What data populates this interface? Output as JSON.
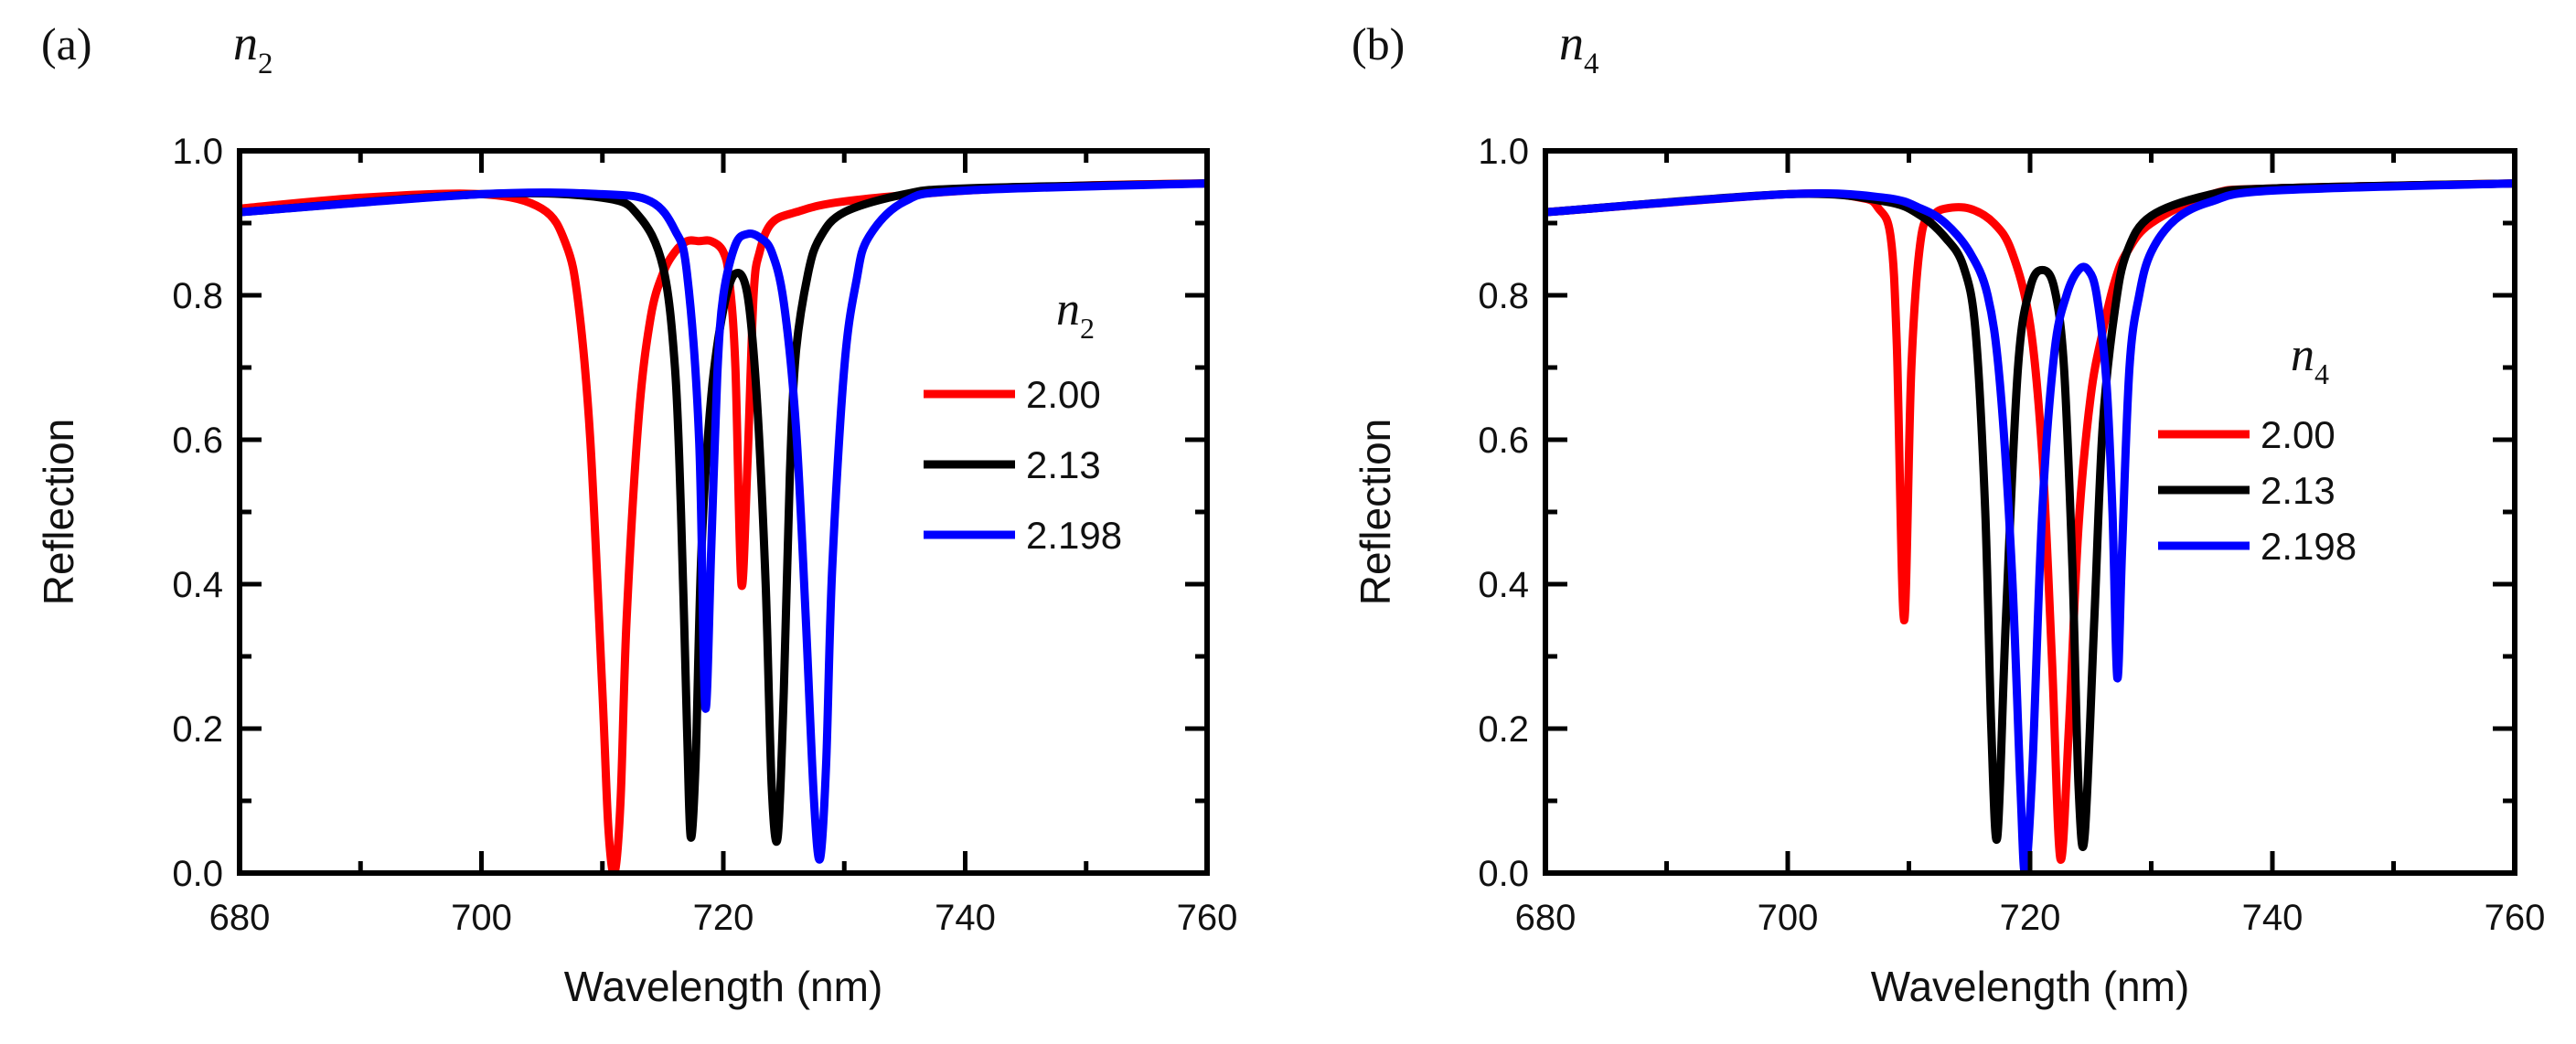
{
  "chart_data": [
    {
      "panel_label": "(a)",
      "param_symbol": "n",
      "param_subscript": "2",
      "type": "line",
      "xlabel": "Wavelength (nm)",
      "ylabel": "Reflection",
      "xlim": [
        680,
        760
      ],
      "ylim": [
        0,
        1.0
      ],
      "xticks": [
        680,
        700,
        720,
        740,
        760
      ],
      "yticks": [
        0,
        0.2,
        0.4,
        0.6,
        0.8,
        1.0
      ],
      "xtick_labels": [
        "680",
        "700",
        "720",
        "740",
        "760"
      ],
      "ytick_labels": [
        "0.0",
        "0.2",
        "0.4",
        "0.6",
        "0.8",
        "1.0"
      ],
      "legend": {
        "title_symbol": "n",
        "title_subscript": "2",
        "placement": "right"
      },
      "series": [
        {
          "name": "2.00",
          "color": "#ff0000",
          "x": [
            680,
            690,
            700,
            705,
            707,
            708,
            709,
            710,
            710.5,
            711,
            711.5,
            712,
            713,
            714,
            715,
            716,
            717,
            718,
            719,
            720,
            720.5,
            721,
            721.5,
            722,
            722.5,
            723,
            724,
            726,
            730,
            740,
            750,
            760
          ],
          "y": [
            0.92,
            0.935,
            0.94,
            0.92,
            0.87,
            0.79,
            0.6,
            0.25,
            0.06,
            0.0,
            0.1,
            0.35,
            0.63,
            0.77,
            0.83,
            0.86,
            0.875,
            0.875,
            0.875,
            0.86,
            0.82,
            0.7,
            0.4,
            0.57,
            0.8,
            0.86,
            0.9,
            0.915,
            0.93,
            0.945,
            0.952,
            0.955
          ]
        },
        {
          "name": "2.13",
          "color": "#000000",
          "x": [
            680,
            700,
            710,
            713,
            715,
            716,
            716.5,
            717,
            717.3,
            717.7,
            718.2,
            719,
            720,
            721,
            722,
            722.8,
            723.5,
            724,
            724.5,
            725,
            725.5,
            726,
            727,
            728,
            730,
            735,
            740,
            760
          ],
          "y": [
            0.915,
            0.94,
            0.935,
            0.91,
            0.84,
            0.7,
            0.5,
            0.2,
            0.05,
            0.15,
            0.45,
            0.66,
            0.78,
            0.83,
            0.8,
            0.65,
            0.4,
            0.12,
            0.05,
            0.25,
            0.55,
            0.72,
            0.83,
            0.88,
            0.915,
            0.94,
            0.948,
            0.955
          ]
        },
        {
          "name": "2.198",
          "color": "#0000ff",
          "x": [
            680,
            700,
            710,
            714,
            716,
            717,
            718,
            718.5,
            719,
            719.5,
            720,
            721,
            722,
            723,
            724,
            725,
            726,
            726.8,
            727.5,
            728,
            728.5,
            729,
            730,
            731,
            732,
            735,
            740,
            760
          ],
          "y": [
            0.915,
            0.94,
            0.94,
            0.93,
            0.89,
            0.83,
            0.6,
            0.23,
            0.45,
            0.69,
            0.8,
            0.87,
            0.885,
            0.88,
            0.86,
            0.79,
            0.62,
            0.36,
            0.1,
            0.02,
            0.15,
            0.42,
            0.7,
            0.82,
            0.88,
            0.93,
            0.945,
            0.955
          ]
        }
      ]
    },
    {
      "panel_label": "(b)",
      "param_symbol": "n",
      "param_subscript": "4",
      "type": "line",
      "xlabel": "Wavelength (nm)",
      "ylabel": "Reflection",
      "xlim": [
        680,
        760
      ],
      "ylim": [
        0,
        1.0
      ],
      "xticks": [
        680,
        700,
        720,
        740,
        760
      ],
      "yticks": [
        0,
        0.2,
        0.4,
        0.6,
        0.8,
        1.0
      ],
      "xtick_labels": [
        "680",
        "700",
        "720",
        "740",
        "760"
      ],
      "ytick_labels": [
        "0.0",
        "0.2",
        "0.4",
        "0.6",
        "0.8",
        "1.0"
      ],
      "legend": {
        "title_symbol": "n",
        "title_subscript": "4",
        "placement": "right"
      },
      "series": [
        {
          "name": "2.00",
          "color": "#ff0000",
          "x": [
            680,
            700,
            706,
            707.5,
            708.5,
            709,
            709.6,
            710.2,
            711,
            712,
            713,
            715,
            717,
            718.5,
            720,
            721,
            721.8,
            722.5,
            723.2,
            724,
            725,
            726,
            727,
            728,
            730,
            735,
            740,
            760
          ],
          "y": [
            0.915,
            0.94,
            0.935,
            0.92,
            0.88,
            0.73,
            0.35,
            0.7,
            0.88,
            0.91,
            0.92,
            0.92,
            0.9,
            0.86,
            0.76,
            0.58,
            0.3,
            0.02,
            0.2,
            0.48,
            0.66,
            0.75,
            0.82,
            0.86,
            0.9,
            0.94,
            0.948,
            0.955
          ]
        },
        {
          "name": "2.13",
          "color": "#000000",
          "x": [
            680,
            700,
            708,
            711,
            713,
            714.5,
            715.5,
            716.3,
            716.8,
            717.3,
            718,
            719,
            720,
            721,
            722,
            722.8,
            723.5,
            724,
            724.5,
            725.3,
            726,
            727,
            728,
            730,
            735,
            740,
            760
          ],
          "y": [
            0.915,
            0.94,
            0.93,
            0.91,
            0.88,
            0.84,
            0.75,
            0.5,
            0.2,
            0.05,
            0.35,
            0.7,
            0.81,
            0.835,
            0.81,
            0.7,
            0.42,
            0.12,
            0.05,
            0.35,
            0.62,
            0.78,
            0.86,
            0.91,
            0.94,
            0.948,
            0.955
          ]
        },
        {
          "name": "2.198",
          "color": "#0000ff",
          "x": [
            680,
            700,
            708,
            711,
            713,
            715,
            716.5,
            717.5,
            718.5,
            719.2,
            719.6,
            720.2,
            721,
            722,
            723,
            724,
            724.8,
            725.5,
            726.3,
            726.8,
            727.2,
            727.6,
            728.2,
            729,
            730,
            732,
            735,
            740,
            760
          ],
          "y": [
            0.915,
            0.94,
            0.935,
            0.92,
            0.9,
            0.86,
            0.8,
            0.68,
            0.42,
            0.12,
            0.0,
            0.15,
            0.5,
            0.72,
            0.8,
            0.835,
            0.835,
            0.8,
            0.68,
            0.5,
            0.27,
            0.45,
            0.7,
            0.8,
            0.86,
            0.905,
            0.93,
            0.945,
            0.955
          ]
        }
      ]
    }
  ]
}
